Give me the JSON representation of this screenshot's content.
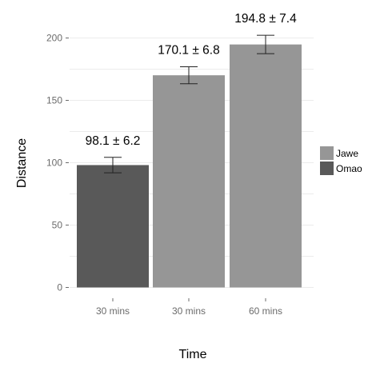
{
  "chart_data": {
    "type": "bar",
    "xlabel": "Time",
    "ylabel": "Distance",
    "ylim": [
      0,
      215
    ],
    "yticks": [
      0,
      50,
      100,
      150,
      200
    ],
    "grid": true,
    "legend_position": "right",
    "series_legend": [
      {
        "name": "Jawe",
        "color": "#969696"
      },
      {
        "name": "Omao",
        "color": "#595959"
      }
    ],
    "bars": [
      {
        "category": "30 mins",
        "series": "Omao",
        "value": 98.1,
        "error": 6.2,
        "label": "98.1 ± 6.2"
      },
      {
        "category": "30 mins",
        "series": "Jawe",
        "value": 170.1,
        "error": 6.8,
        "label": "170.1 ± 6.8"
      },
      {
        "category": "60 mins",
        "series": "Jawe",
        "value": 194.8,
        "error": 7.4,
        "label": "194.8 ± 7.4"
      }
    ]
  }
}
